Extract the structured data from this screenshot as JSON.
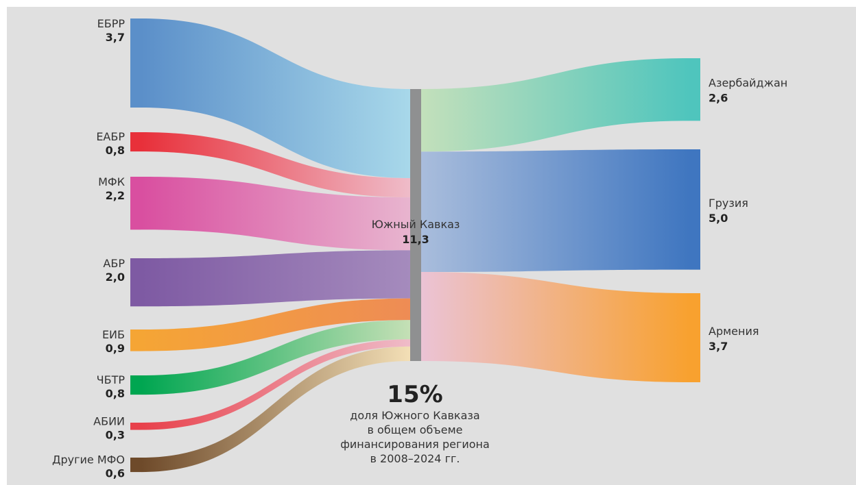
{
  "chart_data": {
    "type": "sankey",
    "center": {
      "name": "Южный Кавказ",
      "value": "11,3",
      "total": 11.3
    },
    "sources": [
      {
        "name": "ЕБРР",
        "value_label": "3,7",
        "value": 3.7,
        "color": "#5b8fc9"
      },
      {
        "name": "ЕАБР",
        "value_label": "0,8",
        "value": 0.8,
        "color": "#e8303a"
      },
      {
        "name": "МФК",
        "value_label": "2,2",
        "value": 2.2,
        "color": "#d94fa0"
      },
      {
        "name": "АБР",
        "value_label": "2,0",
        "value": 2.0,
        "color": "#7e5aa3"
      },
      {
        "name": "ЕИБ",
        "value_label": "0,9",
        "value": 0.9,
        "color": "#f5a535"
      },
      {
        "name": "ЧБТР",
        "value_label": "0,8",
        "value": 0.8,
        "color": "#00a651"
      },
      {
        "name": "АБИИ",
        "value_label": "0,3",
        "value": 0.3,
        "color": "#e8414b"
      },
      {
        "name": "Другие МФО",
        "value_label": "0,6",
        "value": 0.6,
        "color": "#6e4a2a"
      }
    ],
    "targets": [
      {
        "name": "Азербайджан",
        "value_label": "2,6",
        "value": 2.6,
        "color": "#4fc5bd"
      },
      {
        "name": "Грузия",
        "value_label": "5,0",
        "value": 5.0,
        "color": "#3f76c0"
      },
      {
        "name": "Армения",
        "value_label": "3,7",
        "value": 3.7,
        "color": "#f8a12f"
      }
    ]
  },
  "colors": {
    "background": "#e0e0e0",
    "center_bar": "#8f9091",
    "center_side_light": "#a8d8ea",
    "flow_light_green": "#c3e0bb",
    "flow_light_blue": "#a9bddc",
    "flow_light_pink": "#ebc3d5",
    "flow_pink_light": "#e8b5cf",
    "flow_purple_light": "#a58bbd",
    "flow_orange": "#ee8c55",
    "flow_green_light": "#c5e0b6",
    "flow_pink2_light": "#efbcc9",
    "flow_beige_light": "#f3dfb6"
  },
  "note": {
    "percent": "15%",
    "lines": [
      "доля Южного Кавказа",
      "в общем объеме",
      "финансирования региона",
      "в 2008–2024 гг."
    ]
  }
}
